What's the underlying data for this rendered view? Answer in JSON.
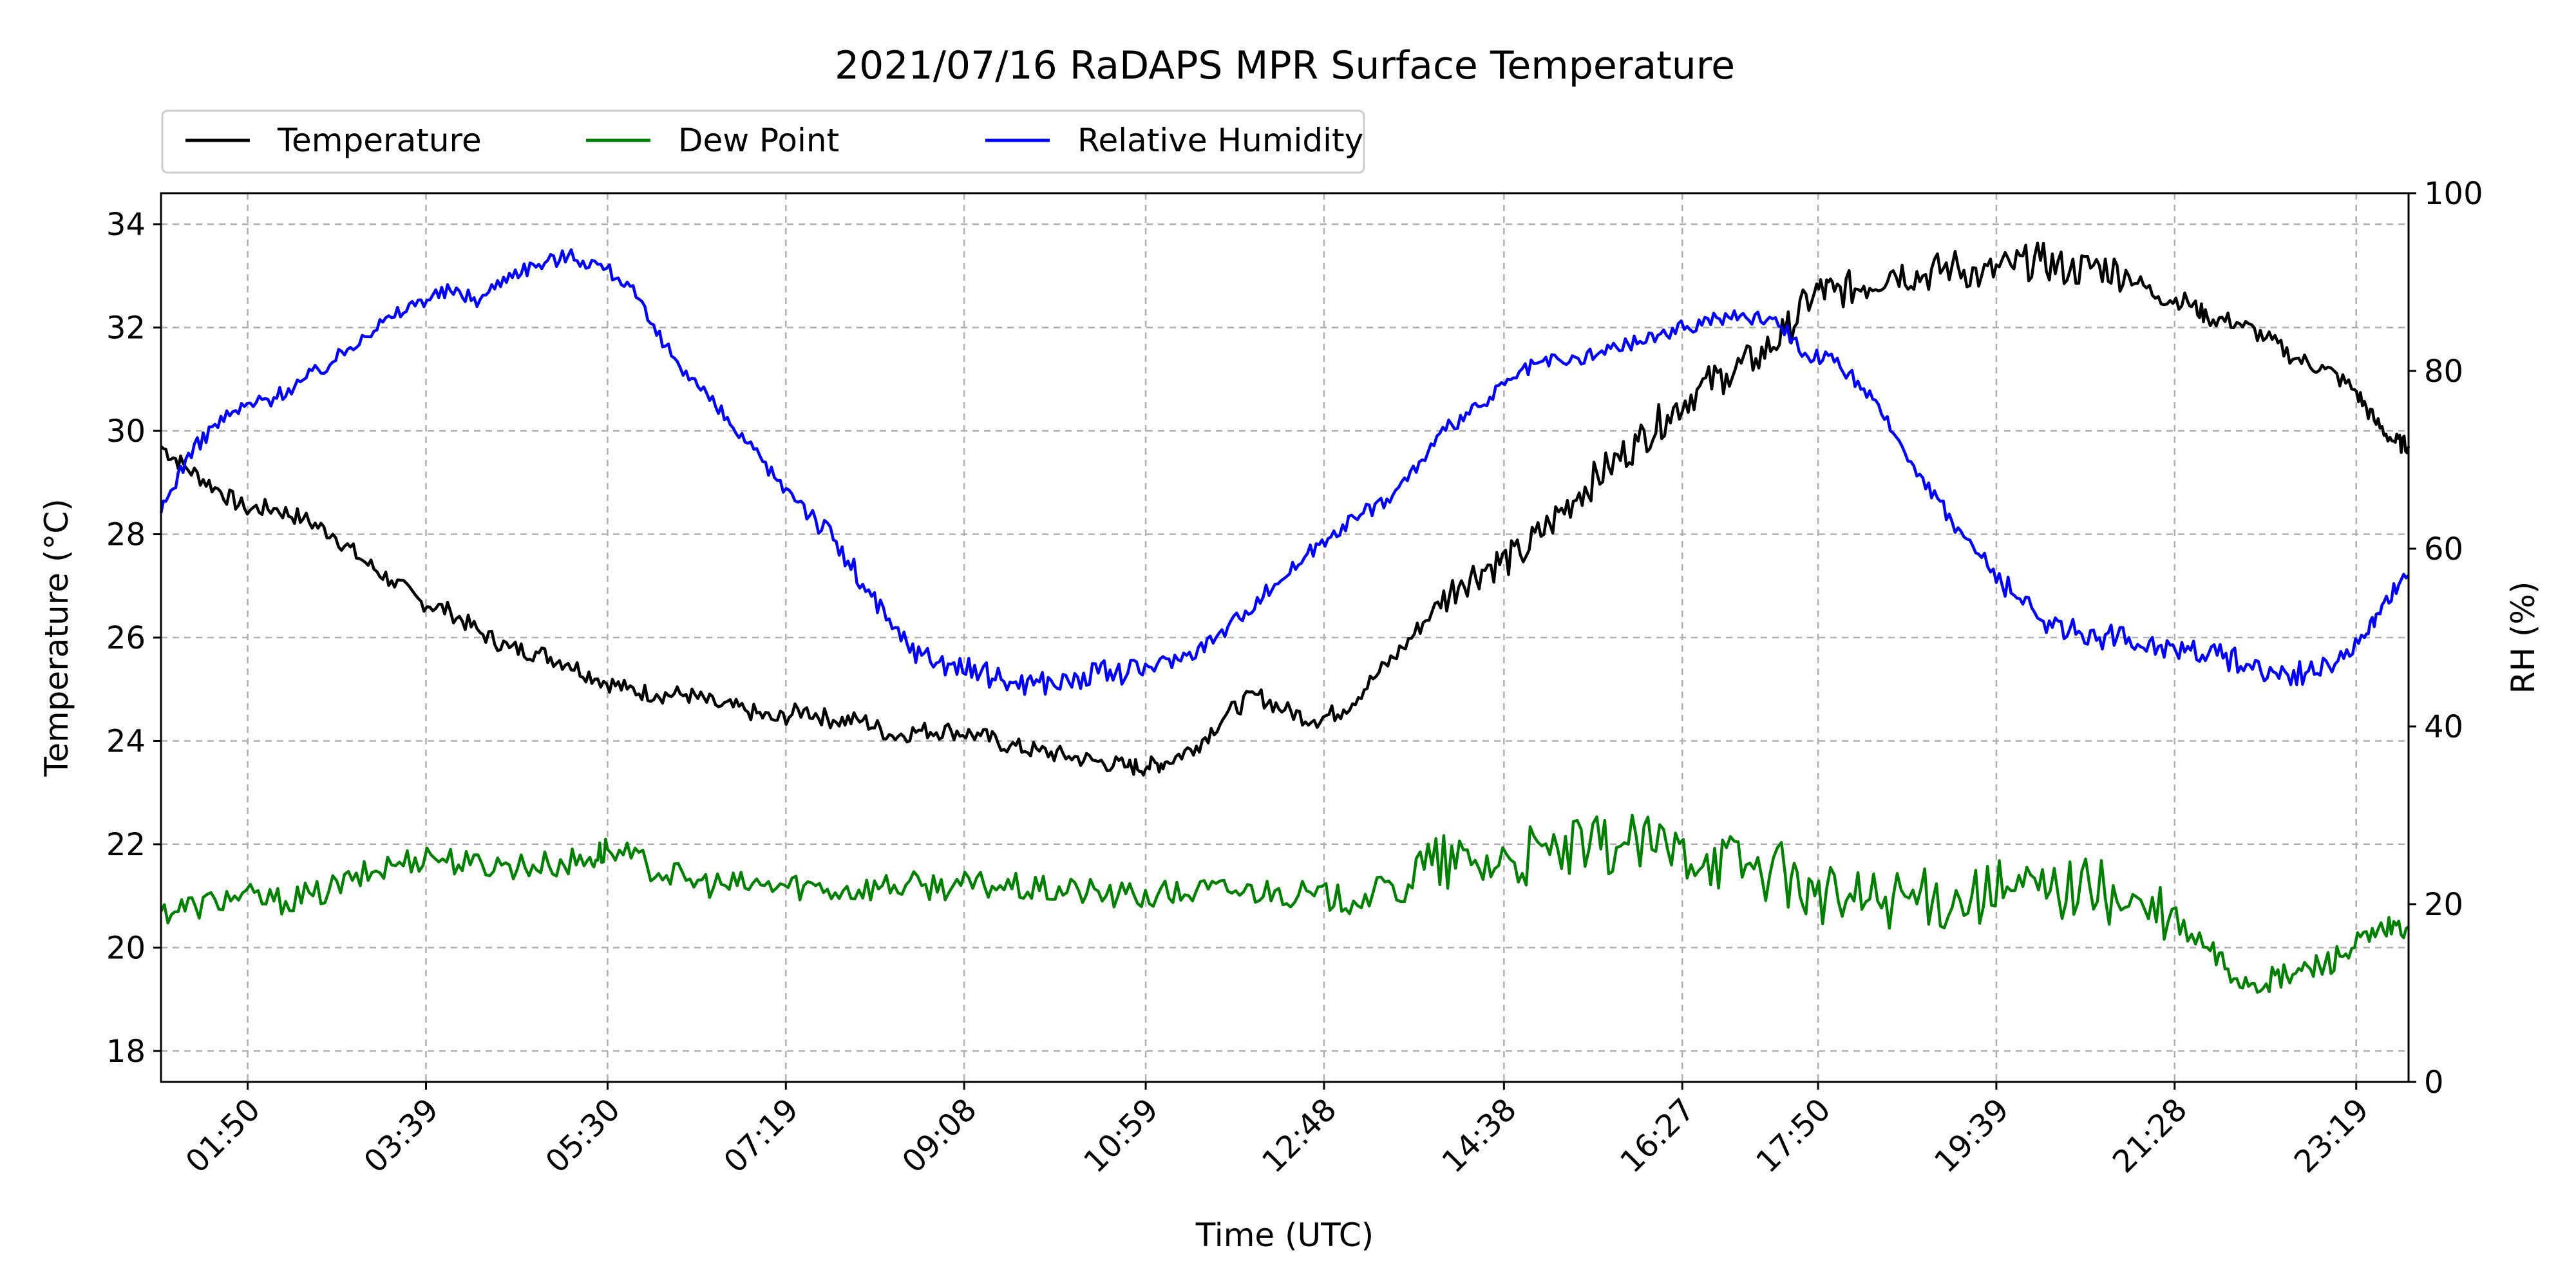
{
  "chart_data": {
    "type": "line",
    "title": "2021/07/16 RaDAPS MPR Surface Temperature",
    "xlabel": "Time (UTC)",
    "ylabel": "Temperature ($^\\circ$C)",
    "ylabel_display": "Temperature (°C)",
    "y2label": "RH (%)",
    "x_unit": "hours UTC",
    "xlim": [
      0.95,
      23.85
    ],
    "ylim": [
      17.4,
      34.6
    ],
    "y2lim": [
      0,
      100
    ],
    "x_ticks": [
      {
        "x": 1.8333,
        "label": "01:50"
      },
      {
        "x": 3.65,
        "label": "03:39"
      },
      {
        "x": 5.5,
        "label": "05:30"
      },
      {
        "x": 7.3167,
        "label": "07:19"
      },
      {
        "x": 9.1333,
        "label": "09:08"
      },
      {
        "x": 10.9833,
        "label": "10:59"
      },
      {
        "x": 12.8,
        "label": "12:48"
      },
      {
        "x": 14.6333,
        "label": "14:38"
      },
      {
        "x": 16.45,
        "label": "16:27"
      },
      {
        "x": 17.8333,
        "label": "17:50"
      },
      {
        "x": 19.65,
        "label": "19:39"
      },
      {
        "x": 21.4667,
        "label": "21:28"
      },
      {
        "x": 23.3167,
        "label": "23:19"
      }
    ],
    "y_ticks": [
      18,
      20,
      22,
      24,
      26,
      28,
      30,
      32,
      34
    ],
    "y2_ticks": [
      0,
      20,
      40,
      60,
      80,
      100
    ],
    "grid": true,
    "legend": {
      "placement": "top-left, above plot",
      "columns": 3
    },
    "series": [
      {
        "name": "Temperature",
        "axis": "left",
        "color": "#000000",
        "x": [
          0.95,
          1.2,
          1.5,
          1.8,
          2.1,
          2.4,
          2.7,
          3.0,
          3.3,
          3.6,
          3.9,
          4.2,
          4.5,
          4.8,
          5.1,
          5.4,
          5.7,
          6.0,
          6.3,
          6.6,
          6.9,
          7.2,
          7.5,
          7.8,
          8.1,
          8.4,
          8.7,
          9.0,
          9.3,
          9.6,
          9.9,
          10.2,
          10.5,
          10.8,
          11.0,
          11.2,
          11.5,
          11.8,
          12.1,
          12.4,
          12.7,
          13.0,
          13.3,
          13.6,
          13.9,
          14.2,
          14.5,
          14.8,
          15.1,
          15.4,
          15.7,
          16.0,
          16.3,
          16.6,
          16.9,
          17.2,
          17.5,
          17.8,
          18.0,
          18.3,
          18.6,
          18.9,
          19.2,
          19.5,
          19.8,
          20.1,
          20.4,
          20.7,
          21.0,
          21.3,
          21.6,
          21.8,
          22.1,
          22.4,
          22.7,
          23.0,
          23.3,
          23.5,
          23.7,
          23.85
        ],
        "y": [
          29.7,
          29.3,
          28.9,
          28.5,
          28.5,
          28.3,
          28.0,
          27.5,
          27.1,
          26.7,
          26.5,
          26.1,
          25.8,
          25.7,
          25.5,
          25.2,
          25.0,
          24.9,
          24.9,
          24.7,
          24.6,
          24.4,
          24.6,
          24.4,
          24.4,
          24.1,
          24.2,
          24.2,
          24.1,
          23.9,
          23.8,
          23.7,
          23.6,
          23.5,
          23.5,
          23.6,
          23.9,
          24.5,
          24.9,
          24.6,
          24.4,
          24.6,
          25.2,
          25.8,
          26.5,
          27.1,
          27.4,
          27.6,
          28.2,
          28.8,
          29.3,
          29.8,
          30.3,
          30.8,
          31.1,
          31.4,
          31.9,
          32.7,
          32.7,
          32.8,
          33.1,
          33.0,
          33.2,
          33.0,
          33.2,
          33.3,
          33.1,
          33.2,
          33.0,
          32.6,
          32.5,
          32.2,
          32.1,
          31.8,
          31.4,
          31.2,
          30.8,
          30.2,
          29.8,
          29.7
        ]
      },
      {
        "name": "Dew Point",
        "axis": "left",
        "color": "#008000",
        "x": [
          0.95,
          1.3,
          1.7,
          2.1,
          2.5,
          2.9,
          3.3,
          3.7,
          4.1,
          4.5,
          4.9,
          5.3,
          5.5,
          5.9,
          6.3,
          6.7,
          7.1,
          7.5,
          7.9,
          8.3,
          8.7,
          9.1,
          9.5,
          9.9,
          10.3,
          10.7,
          11.1,
          11.5,
          11.9,
          12.3,
          12.7,
          13.1,
          13.5,
          13.9,
          14.3,
          14.7,
          15.1,
          15.5,
          15.9,
          16.3,
          16.7,
          17.1,
          17.5,
          17.8,
          18.2,
          18.6,
          19.0,
          19.4,
          19.8,
          20.2,
          20.6,
          21.0,
          21.4,
          21.8,
          22.1,
          22.4,
          22.7,
          23.0,
          23.3,
          23.6,
          23.85
        ],
        "y": [
          20.7,
          20.8,
          21.0,
          20.9,
          21.0,
          21.3,
          21.6,
          21.8,
          21.6,
          21.6,
          21.6,
          21.7,
          21.9,
          21.6,
          21.3,
          21.2,
          21.2,
          21.2,
          21.1,
          21.2,
          21.2,
          21.2,
          21.2,
          21.1,
          21.1,
          21.0,
          21.0,
          21.1,
          21.1,
          21.1,
          21.0,
          20.9,
          21.2,
          21.6,
          21.6,
          21.7,
          21.8,
          21.9,
          22.0,
          21.9,
          21.8,
          21.6,
          21.4,
          21.0,
          20.9,
          21.0,
          20.9,
          21.0,
          21.1,
          21.1,
          21.2,
          20.8,
          20.5,
          20.0,
          19.4,
          19.3,
          19.5,
          19.7,
          20.0,
          20.3,
          20.4
        ]
      },
      {
        "name": "Relative Humidity",
        "axis": "right",
        "color": "#0000ff",
        "x": [
          0.95,
          1.2,
          1.5,
          1.8,
          2.1,
          2.4,
          2.7,
          3.0,
          3.3,
          3.6,
          3.9,
          4.2,
          4.5,
          4.8,
          5.1,
          5.4,
          5.7,
          6.0,
          6.3,
          6.6,
          6.9,
          7.2,
          7.5,
          7.8,
          8.1,
          8.4,
          8.7,
          9.0,
          9.3,
          9.6,
          9.9,
          10.2,
          10.5,
          10.8,
          11.1,
          11.4,
          11.7,
          12.0,
          12.3,
          12.6,
          12.9,
          13.2,
          13.5,
          13.8,
          14.1,
          14.4,
          14.7,
          15.0,
          15.3,
          15.6,
          15.9,
          16.2,
          16.5,
          16.8,
          17.1,
          17.4,
          17.7,
          18.0,
          18.3,
          18.6,
          18.9,
          19.2,
          19.5,
          19.8,
          20.1,
          20.4,
          20.7,
          21.0,
          21.3,
          21.6,
          21.9,
          22.2,
          22.5,
          22.8,
          23.1,
          23.4,
          23.6,
          23.85
        ],
        "y": [
          64,
          70,
          74,
          76,
          77,
          79,
          81,
          84,
          86,
          88,
          89,
          88,
          91,
          92,
          93,
          92,
          90,
          84,
          80,
          76,
          72,
          68,
          65,
          61,
          56,
          51,
          48,
          47,
          46,
          45,
          45,
          45,
          46,
          46,
          47,
          48,
          50,
          53,
          56,
          59,
          62,
          64,
          66,
          70,
          74,
          76,
          79,
          81,
          81,
          82,
          83,
          84,
          85,
          86,
          86,
          86,
          82,
          81,
          78,
          73,
          68,
          63,
          59,
          55,
          52,
          51,
          50,
          50,
          49,
          49,
          48,
          47,
          46,
          46,
          47,
          50,
          54,
          57
        ]
      }
    ]
  }
}
